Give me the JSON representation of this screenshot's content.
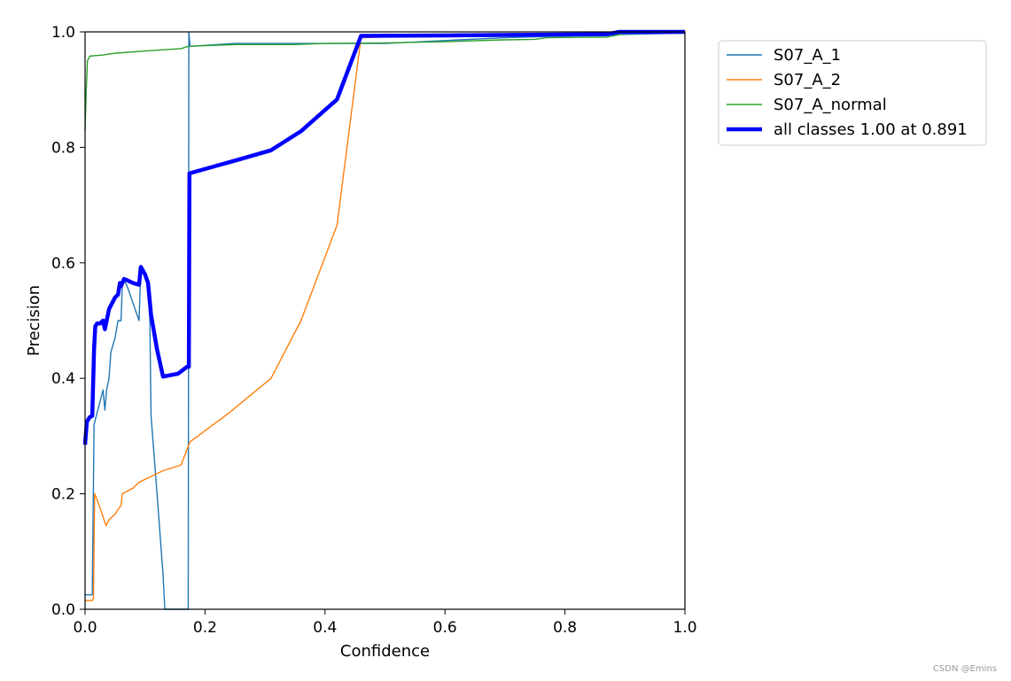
{
  "chart_data": {
    "type": "line",
    "xlabel": "Confidence",
    "ylabel": "Precision",
    "xlim": [
      0,
      1
    ],
    "ylim": [
      0,
      1
    ],
    "xticks": [
      "0.0",
      "0.2",
      "0.4",
      "0.6",
      "0.8",
      "1.0"
    ],
    "yticks": [
      "0.0",
      "0.2",
      "0.4",
      "0.6",
      "0.8",
      "1.0"
    ],
    "grid": false,
    "legend_position": "upper-right-outside",
    "series": [
      {
        "name": "S07_A_1",
        "color": "#1f77b4",
        "line_width": "thin",
        "points": [
          [
            0.0,
            0.025
          ],
          [
            0.012,
            0.025
          ],
          [
            0.015,
            0.32
          ],
          [
            0.02,
            0.34
          ],
          [
            0.025,
            0.36
          ],
          [
            0.03,
            0.38
          ],
          [
            0.033,
            0.345
          ],
          [
            0.036,
            0.38
          ],
          [
            0.04,
            0.4
          ],
          [
            0.043,
            0.445
          ],
          [
            0.05,
            0.47
          ],
          [
            0.055,
            0.5
          ],
          [
            0.06,
            0.5
          ],
          [
            0.062,
            0.56
          ],
          [
            0.065,
            0.57
          ],
          [
            0.07,
            0.56
          ],
          [
            0.08,
            0.53
          ],
          [
            0.09,
            0.5
          ],
          [
            0.093,
            0.59
          ],
          [
            0.1,
            0.58
          ],
          [
            0.105,
            0.56
          ],
          [
            0.108,
            0.5
          ],
          [
            0.11,
            0.335
          ],
          [
            0.12,
            0.2
          ],
          [
            0.13,
            0.06
          ],
          [
            0.133,
            0.0
          ],
          [
            0.172,
            0.0
          ],
          [
            0.173,
            1.0
          ],
          [
            0.175,
            0.975
          ],
          [
            0.25,
            0.98
          ],
          [
            0.35,
            0.98
          ],
          [
            0.5,
            0.98
          ],
          [
            0.7,
            0.99
          ],
          [
            0.87,
            0.995
          ],
          [
            1.0,
            0.998
          ]
        ]
      },
      {
        "name": "S07_A_2",
        "color": "#ff7f0e",
        "line_width": "thin",
        "points": [
          [
            0.0,
            0.015
          ],
          [
            0.012,
            0.015
          ],
          [
            0.014,
            0.02
          ],
          [
            0.016,
            0.2
          ],
          [
            0.02,
            0.19
          ],
          [
            0.03,
            0.16
          ],
          [
            0.035,
            0.145
          ],
          [
            0.04,
            0.155
          ],
          [
            0.05,
            0.165
          ],
          [
            0.06,
            0.18
          ],
          [
            0.062,
            0.2
          ],
          [
            0.08,
            0.21
          ],
          [
            0.09,
            0.22
          ],
          [
            0.11,
            0.23
          ],
          [
            0.13,
            0.24
          ],
          [
            0.16,
            0.25
          ],
          [
            0.175,
            0.29
          ],
          [
            0.24,
            0.34
          ],
          [
            0.31,
            0.4
          ],
          [
            0.36,
            0.5
          ],
          [
            0.42,
            0.665
          ],
          [
            0.46,
            0.99
          ],
          [
            0.62,
            0.995
          ],
          [
            0.87,
            0.996
          ],
          [
            0.89,
            0.998
          ],
          [
            1.0,
            1.0
          ]
        ]
      },
      {
        "name": "S07_A_normal",
        "color": "#2ca02c",
        "line_width": "thin",
        "points": [
          [
            0.0,
            0.83
          ],
          [
            0.002,
            0.9
          ],
          [
            0.004,
            0.95
          ],
          [
            0.008,
            0.958
          ],
          [
            0.03,
            0.96
          ],
          [
            0.05,
            0.963
          ],
          [
            0.1,
            0.967
          ],
          [
            0.16,
            0.971
          ],
          [
            0.172,
            0.975
          ],
          [
            0.25,
            0.978
          ],
          [
            0.35,
            0.978
          ],
          [
            0.4,
            0.98
          ],
          [
            0.5,
            0.981
          ],
          [
            0.6,
            0.983
          ],
          [
            0.69,
            0.986
          ],
          [
            0.75,
            0.987
          ],
          [
            0.77,
            0.99
          ],
          [
            0.87,
            0.991
          ],
          [
            0.9,
            0.997
          ],
          [
            1.0,
            1.0
          ]
        ]
      },
      {
        "name": "all classes 1.00 at 0.891",
        "color": "#0000ff",
        "line_width": "thick",
        "points": [
          [
            0.0,
            0.285
          ],
          [
            0.003,
            0.325
          ],
          [
            0.008,
            0.333
          ],
          [
            0.012,
            0.335
          ],
          [
            0.015,
            0.45
          ],
          [
            0.017,
            0.49
          ],
          [
            0.02,
            0.495
          ],
          [
            0.025,
            0.495
          ],
          [
            0.03,
            0.5
          ],
          [
            0.033,
            0.485
          ],
          [
            0.036,
            0.5
          ],
          [
            0.04,
            0.52
          ],
          [
            0.045,
            0.53
          ],
          [
            0.05,
            0.54
          ],
          [
            0.055,
            0.545
          ],
          [
            0.058,
            0.565
          ],
          [
            0.06,
            0.56
          ],
          [
            0.065,
            0.572
          ],
          [
            0.07,
            0.57
          ],
          [
            0.08,
            0.565
          ],
          [
            0.09,
            0.562
          ],
          [
            0.093,
            0.593
          ],
          [
            0.1,
            0.58
          ],
          [
            0.105,
            0.565
          ],
          [
            0.11,
            0.51
          ],
          [
            0.12,
            0.45
          ],
          [
            0.13,
            0.403
          ],
          [
            0.14,
            0.405
          ],
          [
            0.155,
            0.408
          ],
          [
            0.17,
            0.42
          ],
          [
            0.173,
            0.42
          ],
          [
            0.174,
            0.755
          ],
          [
            0.26,
            0.78
          ],
          [
            0.31,
            0.795
          ],
          [
            0.36,
            0.828
          ],
          [
            0.42,
            0.883
          ],
          [
            0.46,
            0.993
          ],
          [
            0.62,
            0.994
          ],
          [
            0.87,
            0.996
          ],
          [
            0.891,
            1.0
          ],
          [
            1.0,
            1.0
          ]
        ]
      }
    ]
  },
  "watermark": "CSDN @Emins"
}
